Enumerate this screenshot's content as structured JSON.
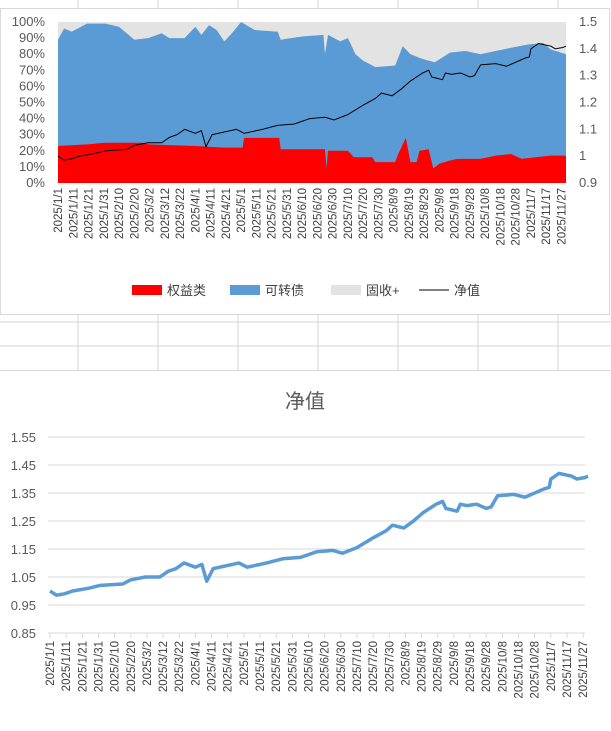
{
  "chart_data": [
    {
      "type": "area",
      "stacking": "percent",
      "title": "",
      "x_tick_labels": [
        "2025/1/1",
        "2025/1/11",
        "2025/1/21",
        "2025/1/31",
        "2025/2/10",
        "2025/2/20",
        "2025/3/2",
        "2025/3/12",
        "2025/3/22",
        "2025/4/1",
        "2025/4/11",
        "2025/4/21",
        "2025/5/1",
        "2025/5/11",
        "2025/5/21",
        "2025/5/31",
        "2025/6/10",
        "2025/6/20",
        "2025/6/30",
        "2025/7/10",
        "2025/7/20",
        "2025/7/30",
        "2025/8/9",
        "2025/8/19",
        "2025/8/29",
        "2025/9/8",
        "2025/9/18",
        "2025/9/28",
        "2025/10/8",
        "2025/10/18",
        "2025/10/28",
        "2025/11/7",
        "2025/11/17",
        "2025/11/27"
      ],
      "y_left": {
        "range": [
          0,
          100
        ],
        "ticks": [
          "0%",
          "10%",
          "20%",
          "30%",
          "40%",
          "50%",
          "60%",
          "70%",
          "80%",
          "90%",
          "100%"
        ]
      },
      "y_right": {
        "range": [
          0.9,
          1.5
        ],
        "ticks": [
          "0.9",
          "1",
          "1.1",
          "1.2",
          "1.3",
          "1.4",
          "1.5"
        ]
      },
      "legend": {
        "placement": "bottom",
        "entries": [
          {
            "name": "权益类",
            "color": "#ff0000"
          },
          {
            "name": "可转债",
            "color": "#5b9bd5"
          },
          {
            "name": "固收+",
            "color": "#e3e3e3"
          },
          {
            "name": "净值",
            "color": "#000000"
          }
        ]
      },
      "series": {
        "equity_pct": [
          [
            "1/1",
            23
          ],
          [
            "1/20",
            24
          ],
          [
            "2/1",
            25
          ],
          [
            "2/25",
            25
          ],
          [
            "3/1",
            24
          ],
          [
            "4/1",
            23
          ],
          [
            "4/20",
            22
          ],
          [
            "5/2",
            22
          ],
          [
            "5/3",
            28
          ],
          [
            "5/26",
            28
          ],
          [
            "5/27",
            21
          ],
          [
            "6/25",
            21
          ],
          [
            "6/26",
            9
          ],
          [
            "6/27",
            20
          ],
          [
            "7/10",
            20
          ],
          [
            "7/14",
            16
          ],
          [
            "7/26",
            16
          ],
          [
            "7/28",
            13
          ],
          [
            "8/10",
            13
          ],
          [
            "8/12",
            18
          ],
          [
            "8/17",
            28
          ],
          [
            "8/20",
            13
          ],
          [
            "8/24",
            13
          ],
          [
            "8/26",
            20
          ],
          [
            "9/1",
            21
          ],
          [
            "9/4",
            9
          ],
          [
            "9/8",
            12
          ],
          [
            "9/15",
            14
          ],
          [
            "9/20",
            15
          ],
          [
            "10/5",
            15
          ],
          [
            "10/15",
            17
          ],
          [
            "10/25",
            18
          ],
          [
            "11/1",
            15
          ],
          [
            "11/10",
            16
          ],
          [
            "11/20",
            17
          ],
          [
            "11/30",
            17
          ]
        ],
        "equity_plus_convertible_pct": [
          [
            "1/1",
            89
          ],
          [
            "1/5",
            96
          ],
          [
            "1/10",
            94
          ],
          [
            "1/20",
            99
          ],
          [
            "2/1",
            99
          ],
          [
            "2/10",
            97
          ],
          [
            "2/20",
            89
          ],
          [
            "3/1",
            90
          ],
          [
            "3/10",
            93
          ],
          [
            "3/15",
            90
          ],
          [
            "3/25",
            90
          ],
          [
            "4/1",
            97
          ],
          [
            "4/5",
            92
          ],
          [
            "4/10",
            98
          ],
          [
            "4/15",
            95
          ],
          [
            "4/20",
            88
          ],
          [
            "4/25",
            93
          ],
          [
            "5/1",
            100
          ],
          [
            "5/10",
            95
          ],
          [
            "5/25",
            94
          ],
          [
            "5/27",
            89
          ],
          [
            "6/10",
            91
          ],
          [
            "6/24",
            92
          ],
          [
            "6/25",
            80
          ],
          [
            "6/27",
            92
          ],
          [
            "7/5",
            88
          ],
          [
            "7/10",
            90
          ],
          [
            "7/15",
            80
          ],
          [
            "7/20",
            76
          ],
          [
            "7/28",
            72
          ],
          [
            "8/10",
            73
          ],
          [
            "8/15",
            85
          ],
          [
            "8/20",
            80
          ],
          [
            "8/28",
            77
          ],
          [
            "9/5",
            75
          ],
          [
            "9/15",
            81
          ],
          [
            "9/25",
            82
          ],
          [
            "10/5",
            80
          ],
          [
            "10/15",
            82
          ],
          [
            "10/25",
            84
          ],
          [
            "11/5",
            86
          ],
          [
            "11/15",
            87
          ],
          [
            "11/20",
            83
          ],
          [
            "11/30",
            80
          ]
        ],
        "nav": [
          [
            "1/1",
            1.0
          ],
          [
            "1/5",
            0.985
          ],
          [
            "1/10",
            0.99
          ],
          [
            "1/15",
            1.0
          ],
          [
            "1/25",
            1.01
          ],
          [
            "2/1",
            1.02
          ],
          [
            "2/15",
            1.025
          ],
          [
            "2/20",
            1.04
          ],
          [
            "3/1",
            1.05
          ],
          [
            "3/10",
            1.05
          ],
          [
            "3/15",
            1.07
          ],
          [
            "3/20",
            1.08
          ],
          [
            "3/25",
            1.1
          ],
          [
            "4/1",
            1.085
          ],
          [
            "4/5",
            1.095
          ],
          [
            "4/8",
            1.035
          ],
          [
            "4/12",
            1.08
          ],
          [
            "4/20",
            1.09
          ],
          [
            "4/28",
            1.1
          ],
          [
            "5/3",
            1.085
          ],
          [
            "5/15",
            1.1
          ],
          [
            "5/25",
            1.115
          ],
          [
            "6/5",
            1.12
          ],
          [
            "6/15",
            1.14
          ],
          [
            "6/25",
            1.145
          ],
          [
            "7/1",
            1.135
          ],
          [
            "7/10",
            1.155
          ],
          [
            "7/20",
            1.19
          ],
          [
            "7/28",
            1.215
          ],
          [
            "8/1",
            1.235
          ],
          [
            "8/8",
            1.225
          ],
          [
            "8/14",
            1.25
          ],
          [
            "8/20",
            1.28
          ],
          [
            "8/28",
            1.31
          ],
          [
            "9/1",
            1.32
          ],
          [
            "9/3",
            1.295
          ],
          [
            "9/10",
            1.285
          ],
          [
            "9/12",
            1.31
          ],
          [
            "9/16",
            1.305
          ],
          [
            "9/22",
            1.31
          ],
          [
            "9/28",
            1.295
          ],
          [
            "10/1",
            1.3
          ],
          [
            "10/5",
            1.34
          ],
          [
            "10/15",
            1.345
          ],
          [
            "10/22",
            1.335
          ],
          [
            "10/28",
            1.35
          ],
          [
            "11/3",
            1.365
          ],
          [
            "11/6",
            1.37
          ],
          [
            "11/7",
            1.4
          ],
          [
            "11/12",
            1.42
          ],
          [
            "11/20",
            1.41
          ],
          [
            "11/23",
            1.4
          ],
          [
            "11/28",
            1.405
          ],
          [
            "11/30",
            1.41
          ]
        ]
      }
    },
    {
      "type": "line",
      "title": "净值",
      "x_tick_labels": [
        "2025/1/1",
        "2025/1/11",
        "2025/1/21",
        "2025/1/31",
        "2025/2/10",
        "2025/2/20",
        "2025/3/2",
        "2025/3/12",
        "2025/3/22",
        "2025/4/1",
        "2025/4/11",
        "2025/4/21",
        "2025/5/1",
        "2025/5/11",
        "2025/5/21",
        "2025/5/31",
        "2025/6/10",
        "2025/6/20",
        "2025/6/30",
        "2025/7/10",
        "2025/7/20",
        "2025/7/30",
        "2025/8/9",
        "2025/8/19",
        "2025/8/29",
        "2025/9/8",
        "2025/9/18",
        "2025/9/28",
        "2025/10/8",
        "2025/10/18",
        "2025/10/28",
        "2025/11/7",
        "2025/11/17",
        "2025/11/27"
      ],
      "y": {
        "range": [
          0.85,
          1.55
        ],
        "ticks": [
          "0.85",
          "0.95",
          "1.05",
          "1.15",
          "1.25",
          "1.35",
          "1.45",
          "1.55"
        ]
      },
      "grid": true,
      "series_color": "#5b9bd5",
      "series_ref": "nav"
    }
  ]
}
